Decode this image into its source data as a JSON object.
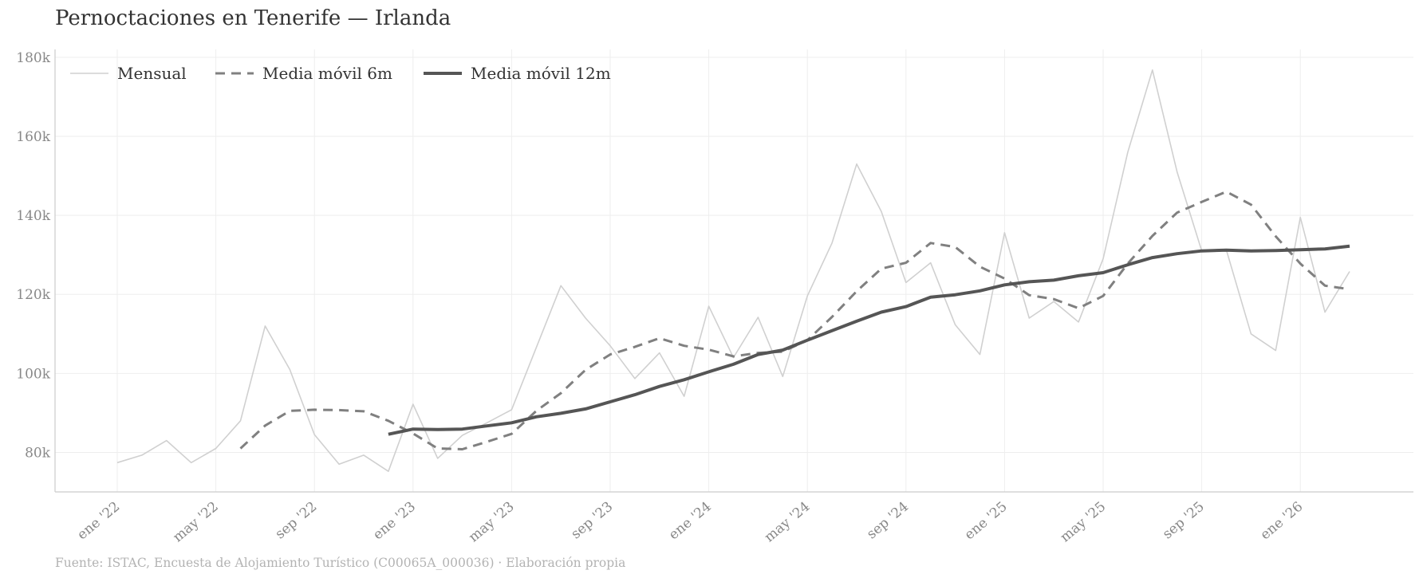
{
  "title": "Pernoctaciones en Tenerife — Irlanda",
  "source": "Fuente: ISTAC, Encuesta de Alojamiento Turístico (C00065A_000036)  ·  Elaboración propia",
  "colors": {
    "monthly": "#d0d0d0",
    "ma6": "#808080",
    "ma12": "#555555",
    "grid": "#eeeeee",
    "axis": "#cccccc",
    "ticks": "#888888"
  },
  "chart_data": {
    "type": "line",
    "title": "Pernoctaciones en Tenerife — Irlanda",
    "xlabel": "",
    "ylabel": "",
    "x": [
      "2022-01",
      "2022-02",
      "2022-03",
      "2022-04",
      "2022-05",
      "2022-06",
      "2022-07",
      "2022-08",
      "2022-09",
      "2022-10",
      "2022-11",
      "2022-12",
      "2023-01",
      "2023-02",
      "2023-03",
      "2023-04",
      "2023-05",
      "2023-06",
      "2023-07",
      "2023-08",
      "2023-09",
      "2023-10",
      "2023-11",
      "2023-12",
      "2024-01",
      "2024-02",
      "2024-03",
      "2024-04",
      "2024-05",
      "2024-06",
      "2024-07",
      "2024-08",
      "2024-09",
      "2024-10",
      "2024-11",
      "2024-12",
      "2025-01",
      "2025-02",
      "2025-03",
      "2025-04",
      "2025-05",
      "2025-06",
      "2025-07",
      "2025-08",
      "2025-09",
      "2025-10",
      "2025-11",
      "2025-12",
      "2026-01",
      "2026-02",
      "2026-03"
    ],
    "series": [
      {
        "name": "Mensual",
        "values": [
          77400,
          79300,
          83000,
          77400,
          81000,
          88000,
          112000,
          101000,
          84500,
          77000,
          79300,
          75200,
          92200,
          78500,
          84300,
          87500,
          90800,
          106500,
          122200,
          114000,
          107000,
          98700,
          105200,
          94200,
          117000,
          104000,
          114200,
          99200,
          119600,
          133000,
          153000,
          141000,
          123000,
          128000,
          112300,
          104800,
          135600,
          114000,
          118200,
          113000,
          129000,
          156000,
          176800,
          151000,
          131000,
          131200,
          110000,
          105800,
          139500,
          115500,
          125800
        ]
      },
      {
        "name": "Media móvil 6m",
        "values": [
          null,
          null,
          null,
          null,
          null,
          81000,
          86800,
          90500,
          90800,
          90700,
          90400,
          88000,
          84800,
          81000,
          80800,
          82700,
          84700,
          90500,
          95000,
          100900,
          104800,
          106700,
          108900,
          107000,
          106000,
          104300,
          105200,
          105500,
          108400,
          114300,
          120800,
          126500,
          128000,
          133000,
          132000,
          127000,
          124000,
          119800,
          118800,
          116500,
          119600,
          127800,
          134800,
          140700,
          143400,
          146000,
          142700,
          134700,
          127800,
          122200,
          121300
        ]
      },
      {
        "name": "Media móvil 12m",
        "values": [
          null,
          null,
          null,
          null,
          null,
          null,
          null,
          null,
          null,
          null,
          null,
          84600,
          85900,
          85800,
          85900,
          86700,
          87500,
          89000,
          89900,
          91000,
          92800,
          94600,
          96700,
          98400,
          100400,
          102300,
          104800,
          105900,
          108400,
          110800,
          113200,
          115500,
          116900,
          119300,
          119900,
          120900,
          122400,
          123200,
          123600,
          124700,
          125500,
          127500,
          129300,
          130300,
          131000,
          131200,
          131000,
          131100,
          131300,
          131500,
          132200
        ]
      }
    ],
    "x_tick_labels": [
      "ene '22",
      "may '22",
      "sep '22",
      "ene '23",
      "may '23",
      "sep '23",
      "ene '24",
      "may '24",
      "sep '24",
      "ene '25",
      "may '25",
      "sep '25",
      "ene '26"
    ],
    "y_tick_labels": [
      "80k",
      "100k",
      "120k",
      "140k",
      "160k",
      "180k"
    ],
    "y_ticks": [
      80000,
      100000,
      120000,
      140000,
      160000,
      180000
    ],
    "ylim": [
      70000,
      182000
    ],
    "grid": true,
    "legend_position": "top-left"
  }
}
